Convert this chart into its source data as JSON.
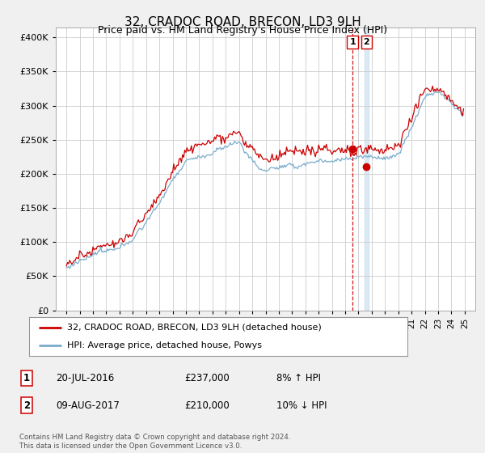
{
  "title": "32, CRADOC ROAD, BRECON, LD3 9LH",
  "subtitle": "Price paid vs. HM Land Registry's House Price Index (HPI)",
  "yticks": [
    0,
    50000,
    100000,
    150000,
    200000,
    250000,
    300000,
    350000,
    400000
  ],
  "ylim": [
    0,
    415000
  ],
  "legend_line1": "32, CRADOC ROAD, BRECON, LD3 9LH (detached house)",
  "legend_line2": "HPI: Average price, detached house, Powys",
  "transaction1_date": "20-JUL-2016",
  "transaction1_price": "£237,000",
  "transaction1_hpi": "8% ↑ HPI",
  "transaction2_date": "09-AUG-2017",
  "transaction2_price": "£210,000",
  "transaction2_hpi": "10% ↓ HPI",
  "footnote": "Contains HM Land Registry data © Crown copyright and database right 2024.\nThis data is licensed under the Open Government Licence v3.0.",
  "line_color_red": "#cc0000",
  "line_color_blue": "#7aadcc",
  "vline_color": "#cc0000",
  "vband_color": "#cce0f0",
  "background_color": "#f0f0f0",
  "plot_bg_color": "#ffffff",
  "t1_x": 2016.55,
  "t2_x": 2017.61,
  "t1_y": 237000,
  "t2_y": 210000,
  "xlim_left": 1994.2,
  "xlim_right": 2025.8
}
